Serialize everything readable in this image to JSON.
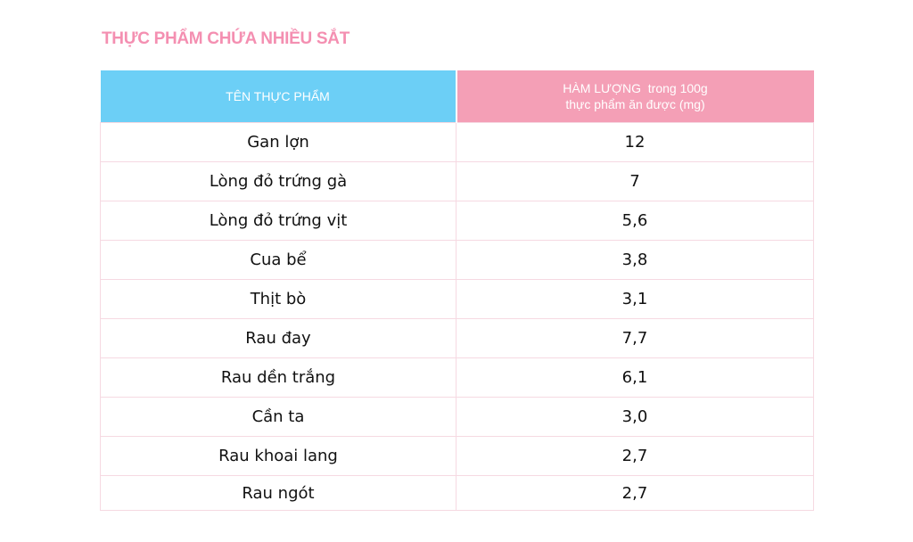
{
  "title": "THỰC PHẨM CHỨA NHIỀU SẮT",
  "table": {
    "header": {
      "name": "TÊN THỰC PHẨM",
      "value_line1": "HÀM LƯỢNG  trong 100g",
      "value_line2": "thực phẩm ăn được (mg)"
    },
    "rows": [
      {
        "name": "Gan lợn",
        "value": "12"
      },
      {
        "name": "Lòng đỏ trứng gà",
        "value": "7"
      },
      {
        "name": "Lòng đỏ trứng vịt",
        "value": "5,6"
      },
      {
        "name": "Cua bể",
        "value": "3,8"
      },
      {
        "name": "Thịt bò",
        "value": "3,1"
      },
      {
        "name": "Rau đay",
        "value": "7,7"
      },
      {
        "name": "Rau dền trắng",
        "value": "6,1"
      },
      {
        "name": "Cần ta",
        "value": "3,0"
      },
      {
        "name": "Rau khoai lang",
        "value": "2,7"
      },
      {
        "name": "Rau ngót",
        "value": "2,7"
      }
    ]
  },
  "colors": {
    "title": "#f48fb1",
    "header_name_bg": "#6ccff6",
    "header_value_bg": "#f49fb6",
    "grid": "#f6d9e2"
  }
}
